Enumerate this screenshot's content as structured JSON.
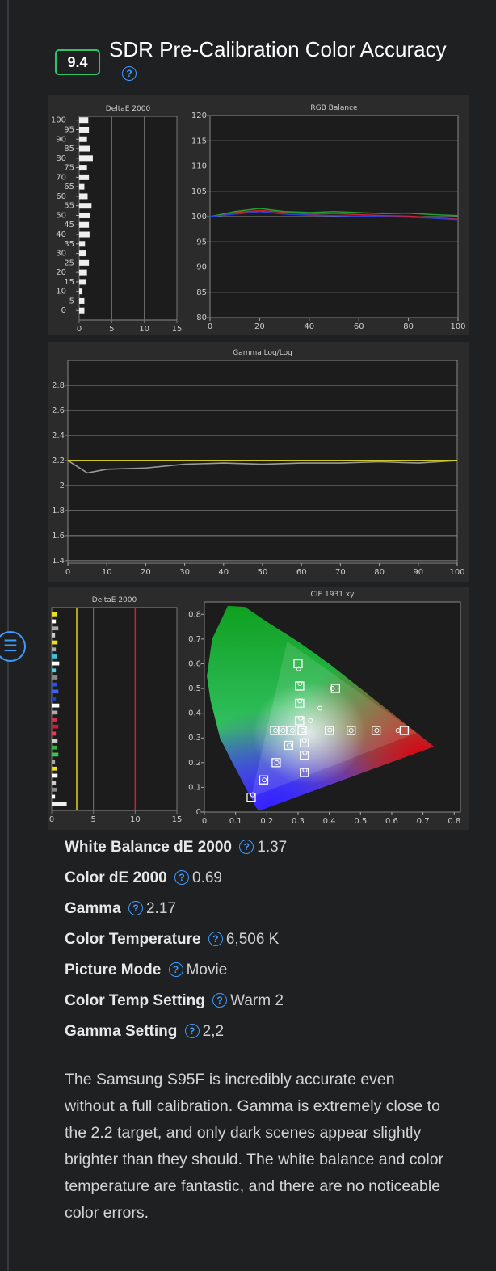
{
  "score": "9.4",
  "title": "SDR Pre-Calibration Color Accuracy",
  "images": [
    {
      "type": "bar-h",
      "title": "DeltaE 2000",
      "xlim": [
        0,
        15
      ],
      "xticks": [
        0,
        5,
        10,
        15
      ],
      "ylim": [
        -5,
        102
      ],
      "yticks": [
        0,
        5,
        10,
        15,
        20,
        25,
        30,
        35,
        40,
        45,
        50,
        55,
        60,
        65,
        70,
        75,
        80,
        85,
        90,
        95,
        100
      ],
      "grid": "x",
      "color": "#eeeeee",
      "values": [
        0.8,
        0.8,
        0.5,
        1,
        1.2,
        1.5,
        1.1,
        0.9,
        1.6,
        1.5,
        1.7,
        1.9,
        1.3,
        0.8,
        1.5,
        1.2,
        2.1,
        1.7,
        1.2,
        1.5,
        1.4
      ]
    },
    {
      "type": "line",
      "title": "RGB Balance",
      "xlim": [
        0,
        100
      ],
      "xticks": [
        0,
        20,
        40,
        60,
        80,
        100
      ],
      "ylim": [
        80,
        120
      ],
      "yticks": [
        80,
        85,
        90,
        95,
        100,
        105,
        110,
        115,
        120
      ],
      "grid": "y",
      "x": [
        0,
        10,
        20,
        30,
        40,
        50,
        60,
        70,
        80,
        90,
        100
      ],
      "series": [
        {
          "color": "#d02030",
          "values": [
            100,
            100.8,
            101.2,
            100.9,
            100.5,
            100.6,
            100.4,
            100.2,
            100.1,
            99.8,
            99.5
          ]
        },
        {
          "color": "#20a030",
          "values": [
            100,
            101,
            101.6,
            101,
            100.8,
            101,
            100.8,
            100.6,
            100.7,
            100.4,
            100.2
          ]
        },
        {
          "color": "#3040d0",
          "values": [
            100,
            100.5,
            101,
            100.5,
            100.3,
            100.2,
            100.1,
            100,
            99.9,
            99.7,
            99.4
          ]
        }
      ]
    },
    {
      "type": "line",
      "title": "Gamma Log/Log",
      "xlim": [
        0,
        100
      ],
      "xticks": [
        0,
        10,
        20,
        30,
        40,
        50,
        60,
        70,
        80,
        90,
        100
      ],
      "ylim": [
        1.38,
        3.0
      ],
      "yticks": [
        1.4,
        1.6,
        1.8,
        2,
        2.2,
        2.4,
        2.6,
        2.8
      ],
      "grid": "y",
      "x": [
        0,
        5,
        10,
        20,
        30,
        40,
        50,
        60,
        70,
        80,
        90,
        100
      ],
      "series": [
        {
          "color": "#9a9a9a",
          "values": [
            2.2,
            2.1,
            2.13,
            2.14,
            2.17,
            2.18,
            2.17,
            2.18,
            2.18,
            2.19,
            2.18,
            2.2
          ]
        },
        {
          "color": "#e8e020",
          "values": [
            2.2,
            2.2,
            2.2,
            2.2,
            2.2,
            2.2,
            2.2,
            2.2,
            2.2,
            2.2,
            2.2,
            2.2
          ]
        }
      ]
    },
    {
      "type": "bar-h",
      "title": "DeltaE 2000",
      "xlim": [
        0,
        15
      ],
      "xticks": [
        0,
        5,
        10,
        15
      ],
      "grid": "x",
      "reference_lines": [
        {
          "value": 3,
          "color": "#e0d020"
        },
        {
          "value": 10,
          "color": "#d02020"
        }
      ],
      "values": [
        0.6,
        0.5,
        0.8,
        0.4,
        0.7,
        0.5,
        0.6,
        0.9,
        0.5,
        0.7,
        0.6,
        0.8,
        0.5,
        0.9,
        0.7,
        0.6,
        0.8,
        0.5,
        0.7,
        0.6,
        0.8,
        0.4,
        0.6,
        0.7,
        0.5,
        0.6,
        0.4,
        1.8
      ],
      "colors": [
        "#e8e020",
        "#ffffff",
        "#aaaaaa",
        "#cccccc",
        "#e8e020",
        "#aaaaaa",
        "#40c0d0",
        "#ffffff",
        "#50d0e0",
        "#888888",
        "#3050e0",
        "#4060f0",
        "#2040c0",
        "#ffffff",
        "#aaaaaa",
        "#d03050",
        "#c02040",
        "#e04060",
        "#cccccc",
        "#30b040",
        "#40c050",
        "#aaaaaa",
        "#e8e020",
        "#ffffff",
        "#cccccc",
        "#888888",
        "#ffffff",
        "#eeeeee"
      ]
    },
    {
      "type": "scatter",
      "title": "CIE 1931 xy",
      "xlim": [
        0,
        0.82
      ],
      "xticks": [
        0,
        0.1,
        0.2,
        0.3,
        0.4,
        0.5,
        0.6,
        0.7,
        0.8
      ],
      "ylim": [
        0,
        0.85
      ],
      "yticks": [
        0,
        0.1,
        0.2,
        0.3,
        0.4,
        0.5,
        0.6,
        0.7,
        0.8
      ],
      "series": [
        {
          "marker": "square",
          "color": "#ffffff",
          "x": [
            0.313,
            0.4,
            0.47,
            0.55,
            0.64,
            0.305,
            0.305,
            0.305,
            0.3,
            0.27,
            0.23,
            0.19,
            0.15,
            0.28,
            0.25,
            0.225,
            0.32,
            0.32,
            0.32,
            0.42
          ],
          "y": [
            0.329,
            0.33,
            0.33,
            0.33,
            0.33,
            0.37,
            0.44,
            0.51,
            0.6,
            0.27,
            0.2,
            0.13,
            0.06,
            0.33,
            0.33,
            0.33,
            0.28,
            0.23,
            0.16,
            0.5
          ]
        },
        {
          "marker": "circle",
          "color": "#ffffff",
          "x": [
            0.315,
            0.402,
            0.47,
            0.552,
            0.62,
            0.308,
            0.306,
            0.306,
            0.302,
            0.272,
            0.232,
            0.192,
            0.155,
            0.282,
            0.252,
            0.228,
            0.32,
            0.322,
            0.322,
            0.34,
            0.37,
            0.41
          ],
          "y": [
            0.33,
            0.332,
            0.33,
            0.33,
            0.33,
            0.38,
            0.45,
            0.52,
            0.58,
            0.27,
            0.2,
            0.13,
            0.07,
            0.33,
            0.33,
            0.33,
            0.29,
            0.24,
            0.17,
            0.37,
            0.42,
            0.5
          ]
        }
      ]
    }
  ],
  "specs": [
    {
      "label": "White Balance dE 2000",
      "value": "1.37"
    },
    {
      "label": "Color dE 2000",
      "value": "0.69"
    },
    {
      "label": "Gamma",
      "value": "2.17"
    },
    {
      "label": "Color Temperature",
      "value": "6,506 K"
    },
    {
      "label": "Picture Mode",
      "value": "Movie"
    },
    {
      "label": "Color Temp Setting",
      "value": "Warm 2"
    },
    {
      "label": "Gamma Setting",
      "value": "2,2"
    }
  ],
  "text": "The Samsung S95F is incredibly accurate even without a full calibration. Gamma is extremely close to the 2.2 target, and only dark scenes appear slightly brighter than they should. The white balance and color temperature are fantastic, and there are no noticeable color errors."
}
